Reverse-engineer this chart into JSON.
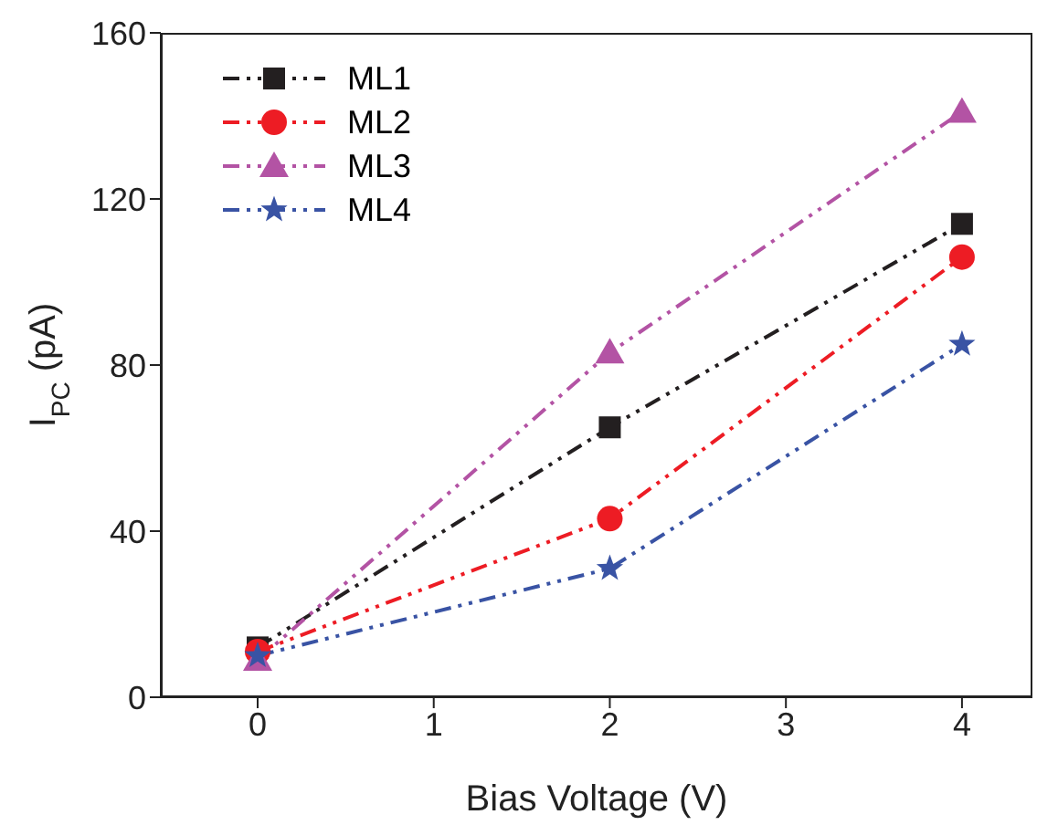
{
  "chart_data": {
    "type": "line",
    "xlabel": "Bias Voltage (V)",
    "ylabel": "I$_{PC}$ (pA)",
    "x": [
      0,
      2,
      4
    ],
    "series": [
      {
        "name": "ML1",
        "color": "#231f20",
        "marker": "square",
        "values": [
          12,
          65,
          114
        ]
      },
      {
        "name": "ML2",
        "color": "#ed1c24",
        "marker": "circle",
        "values": [
          11,
          43,
          106
        ]
      },
      {
        "name": "ML3",
        "color": "#b353a4",
        "marker": "triangle",
        "values": [
          9,
          83,
          141
        ]
      },
      {
        "name": "ML4",
        "color": "#3953a4",
        "marker": "star",
        "values": [
          10,
          31,
          85
        ]
      }
    ],
    "xlim": [
      -0.55,
      4.4
    ],
    "xticks": [
      0,
      1,
      2,
      3,
      4
    ],
    "ylim": [
      0,
      160
    ],
    "yticks": [
      0,
      40,
      80,
      120,
      160
    ],
    "grid": false,
    "legend": "top left",
    "line_style": "dashed"
  }
}
